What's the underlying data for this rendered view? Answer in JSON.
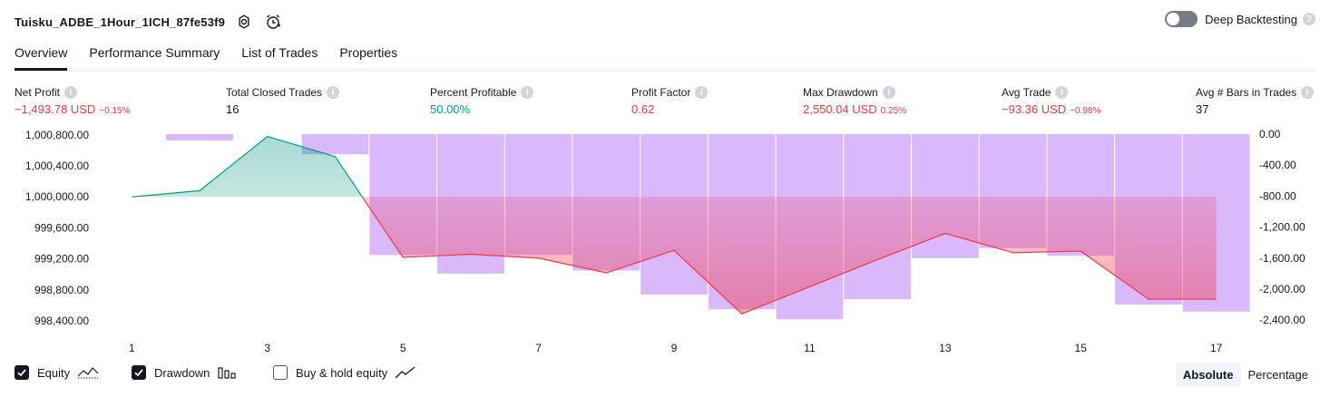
{
  "header": {
    "strategy_name": "Tuisku_ADBE_1Hour_1ICH_87fe53f9",
    "settings_icon": "gear-icon",
    "alert_icon": "alarm-clock-icon",
    "deep_backtesting_label": "Deep Backtesting",
    "deep_backtesting_enabled": false,
    "help_icon": "question-icon"
  },
  "tabs": [
    {
      "label": "Overview",
      "active": true
    },
    {
      "label": "Performance Summary",
      "active": false
    },
    {
      "label": "List of Trades",
      "active": false
    },
    {
      "label": "Properties",
      "active": false
    }
  ],
  "metrics": [
    {
      "label": "Net Profit",
      "value": "−1,493.78 USD",
      "pct": "−0.15%",
      "color": "#f23645"
    },
    {
      "label": "Total Closed Trades",
      "value": "16",
      "pct": "",
      "color": "#131722"
    },
    {
      "label": "Percent Profitable",
      "value": "50.00%",
      "pct": "",
      "color": "#089981"
    },
    {
      "label": "Profit Factor",
      "value": "0.62",
      "pct": "",
      "color": "#f23645"
    },
    {
      "label": "Max Drawdown",
      "value": "2,550.04 USD",
      "pct": "0.25%",
      "color": "#f23645"
    },
    {
      "label": "Avg Trade",
      "value": "−93.36 USD",
      "pct": "−0.98%",
      "color": "#f23645"
    },
    {
      "label": "Avg # Bars in Trades",
      "value": "37",
      "pct": "",
      "color": "#131722"
    }
  ],
  "chart_data": {
    "type": "line",
    "x": [
      1,
      2,
      3,
      4,
      5,
      6,
      7,
      8,
      9,
      10,
      11,
      12,
      13,
      14,
      15,
      16,
      17
    ],
    "x_tick_labels": [
      "1",
      "3",
      "5",
      "7",
      "9",
      "11",
      "13",
      "15",
      "17"
    ],
    "series": [
      {
        "name": "Equity",
        "color": "#089981",
        "loss_color": "#f23645",
        "values": [
          1000000,
          1000080,
          1000780,
          1000520,
          999220,
          999260,
          999210,
          999020,
          999310,
          998490,
          998840,
          999190,
          999530,
          999280,
          999300,
          998680,
          998680
        ]
      },
      {
        "name": "Drawdown",
        "color": "#d9b8fc",
        "values": [
          0,
          -80,
          0,
          -260,
          -1560,
          -1800,
          -1560,
          -1760,
          -2070,
          -2260,
          -2390,
          -2130,
          -1600,
          -1470,
          -1570,
          -2200,
          -2290
        ]
      }
    ],
    "baseline": 1000000,
    "left_axis": {
      "ticks": [
        1000800,
        1000400,
        1000000,
        999600,
        999200,
        998800,
        998400
      ],
      "tick_labels": [
        "1,000,800.00",
        "1,000,400.00",
        "1,000,000.00",
        "999,600.00",
        "999,200.00",
        "998,800.00",
        "998,400.00"
      ],
      "ylim": [
        998330,
        1000810
      ]
    },
    "right_axis": {
      "ticks": [
        0,
        -400,
        -800,
        -1200,
        -1600,
        -2000,
        -2400
      ],
      "tick_labels": [
        "0.00",
        "-400.00",
        "-800.00",
        "-1,200.00",
        "-1,600.00",
        "-2,000.00",
        "-2,400.00"
      ],
      "ylim": [
        -2480,
        0
      ]
    }
  },
  "legend": [
    {
      "label": "Equity",
      "checked": true,
      "icon": "equity-line-icon"
    },
    {
      "label": "Drawdown",
      "checked": true,
      "icon": "bars-icon"
    },
    {
      "label": "Buy & hold equity",
      "checked": false,
      "icon": "trend-line-icon"
    }
  ],
  "view_toggle": {
    "options": [
      "Absolute",
      "Percentage"
    ],
    "selected": "Absolute"
  }
}
